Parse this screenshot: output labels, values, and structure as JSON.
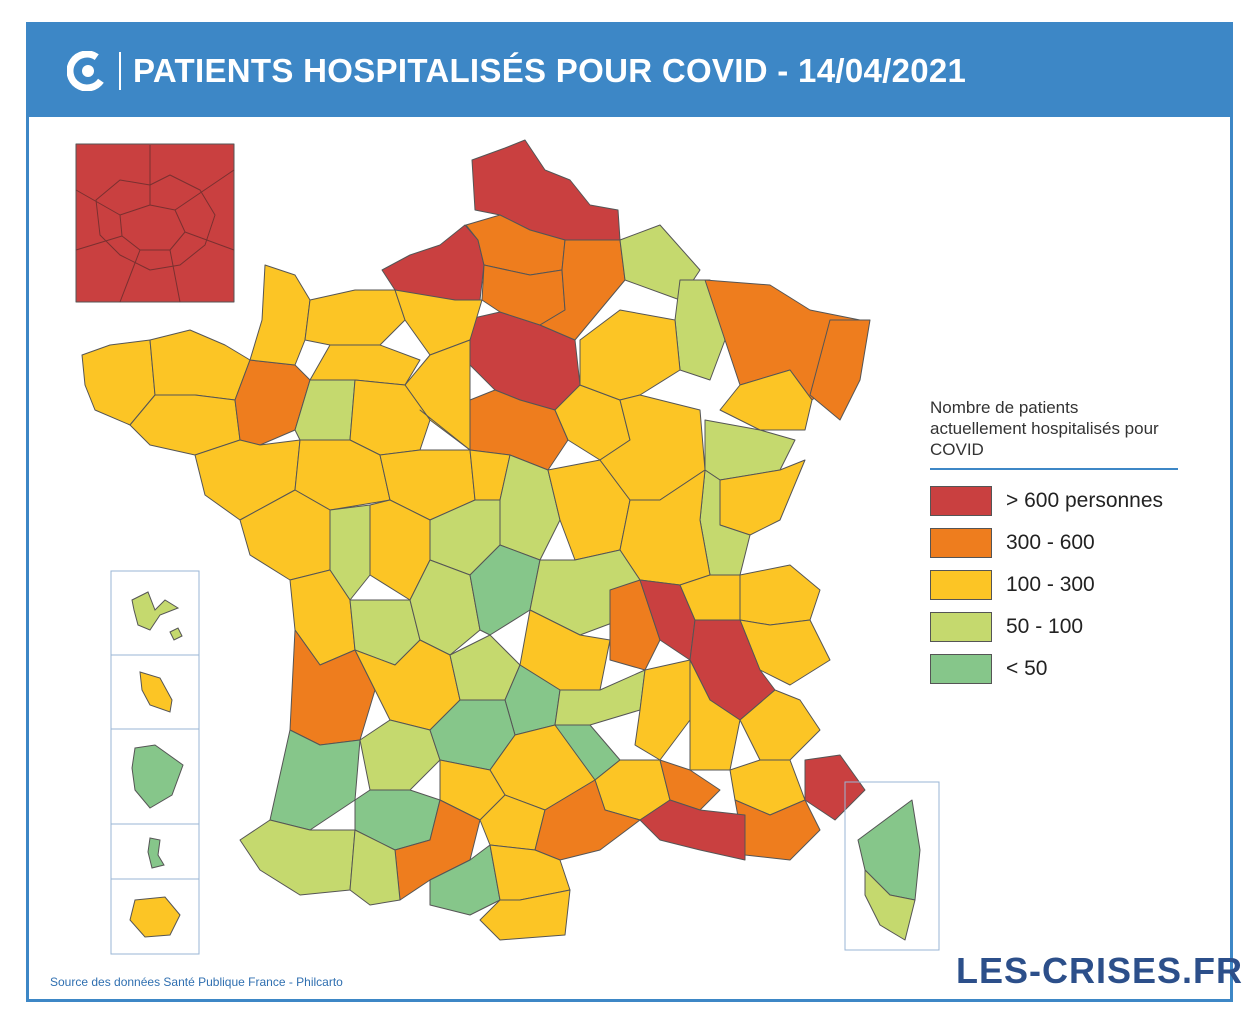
{
  "header": {
    "title": "PATIENTS HOSPITALISÉS POUR COVID - 14/04/2021",
    "logo_icon": "les-crises-c-icon"
  },
  "colors": {
    "header_bg": "#3d87c6",
    "gt600": "#c94040",
    "r300_600": "#ee7d1e",
    "r100_300": "#fcc525",
    "r50_100": "#c5d96e",
    "lt50": "#86c68a"
  },
  "legend": {
    "title": "Nombre de patients actuellement hospitalisés pour COVID",
    "items": [
      {
        "label": "> 600 personnes",
        "color": "#c94040"
      },
      {
        "label": "300 - 600",
        "color": "#ee7d1e"
      },
      {
        "label": "100 - 300",
        "color": "#fcc525"
      },
      {
        "label": "50 - 100",
        "color": "#c5d96e"
      },
      {
        "label": "< 50",
        "color": "#86c68a"
      }
    ]
  },
  "footer": {
    "source": "Source des données Santé Publique France - Philcarto",
    "brand": "LES-CRISES.FR"
  }
}
